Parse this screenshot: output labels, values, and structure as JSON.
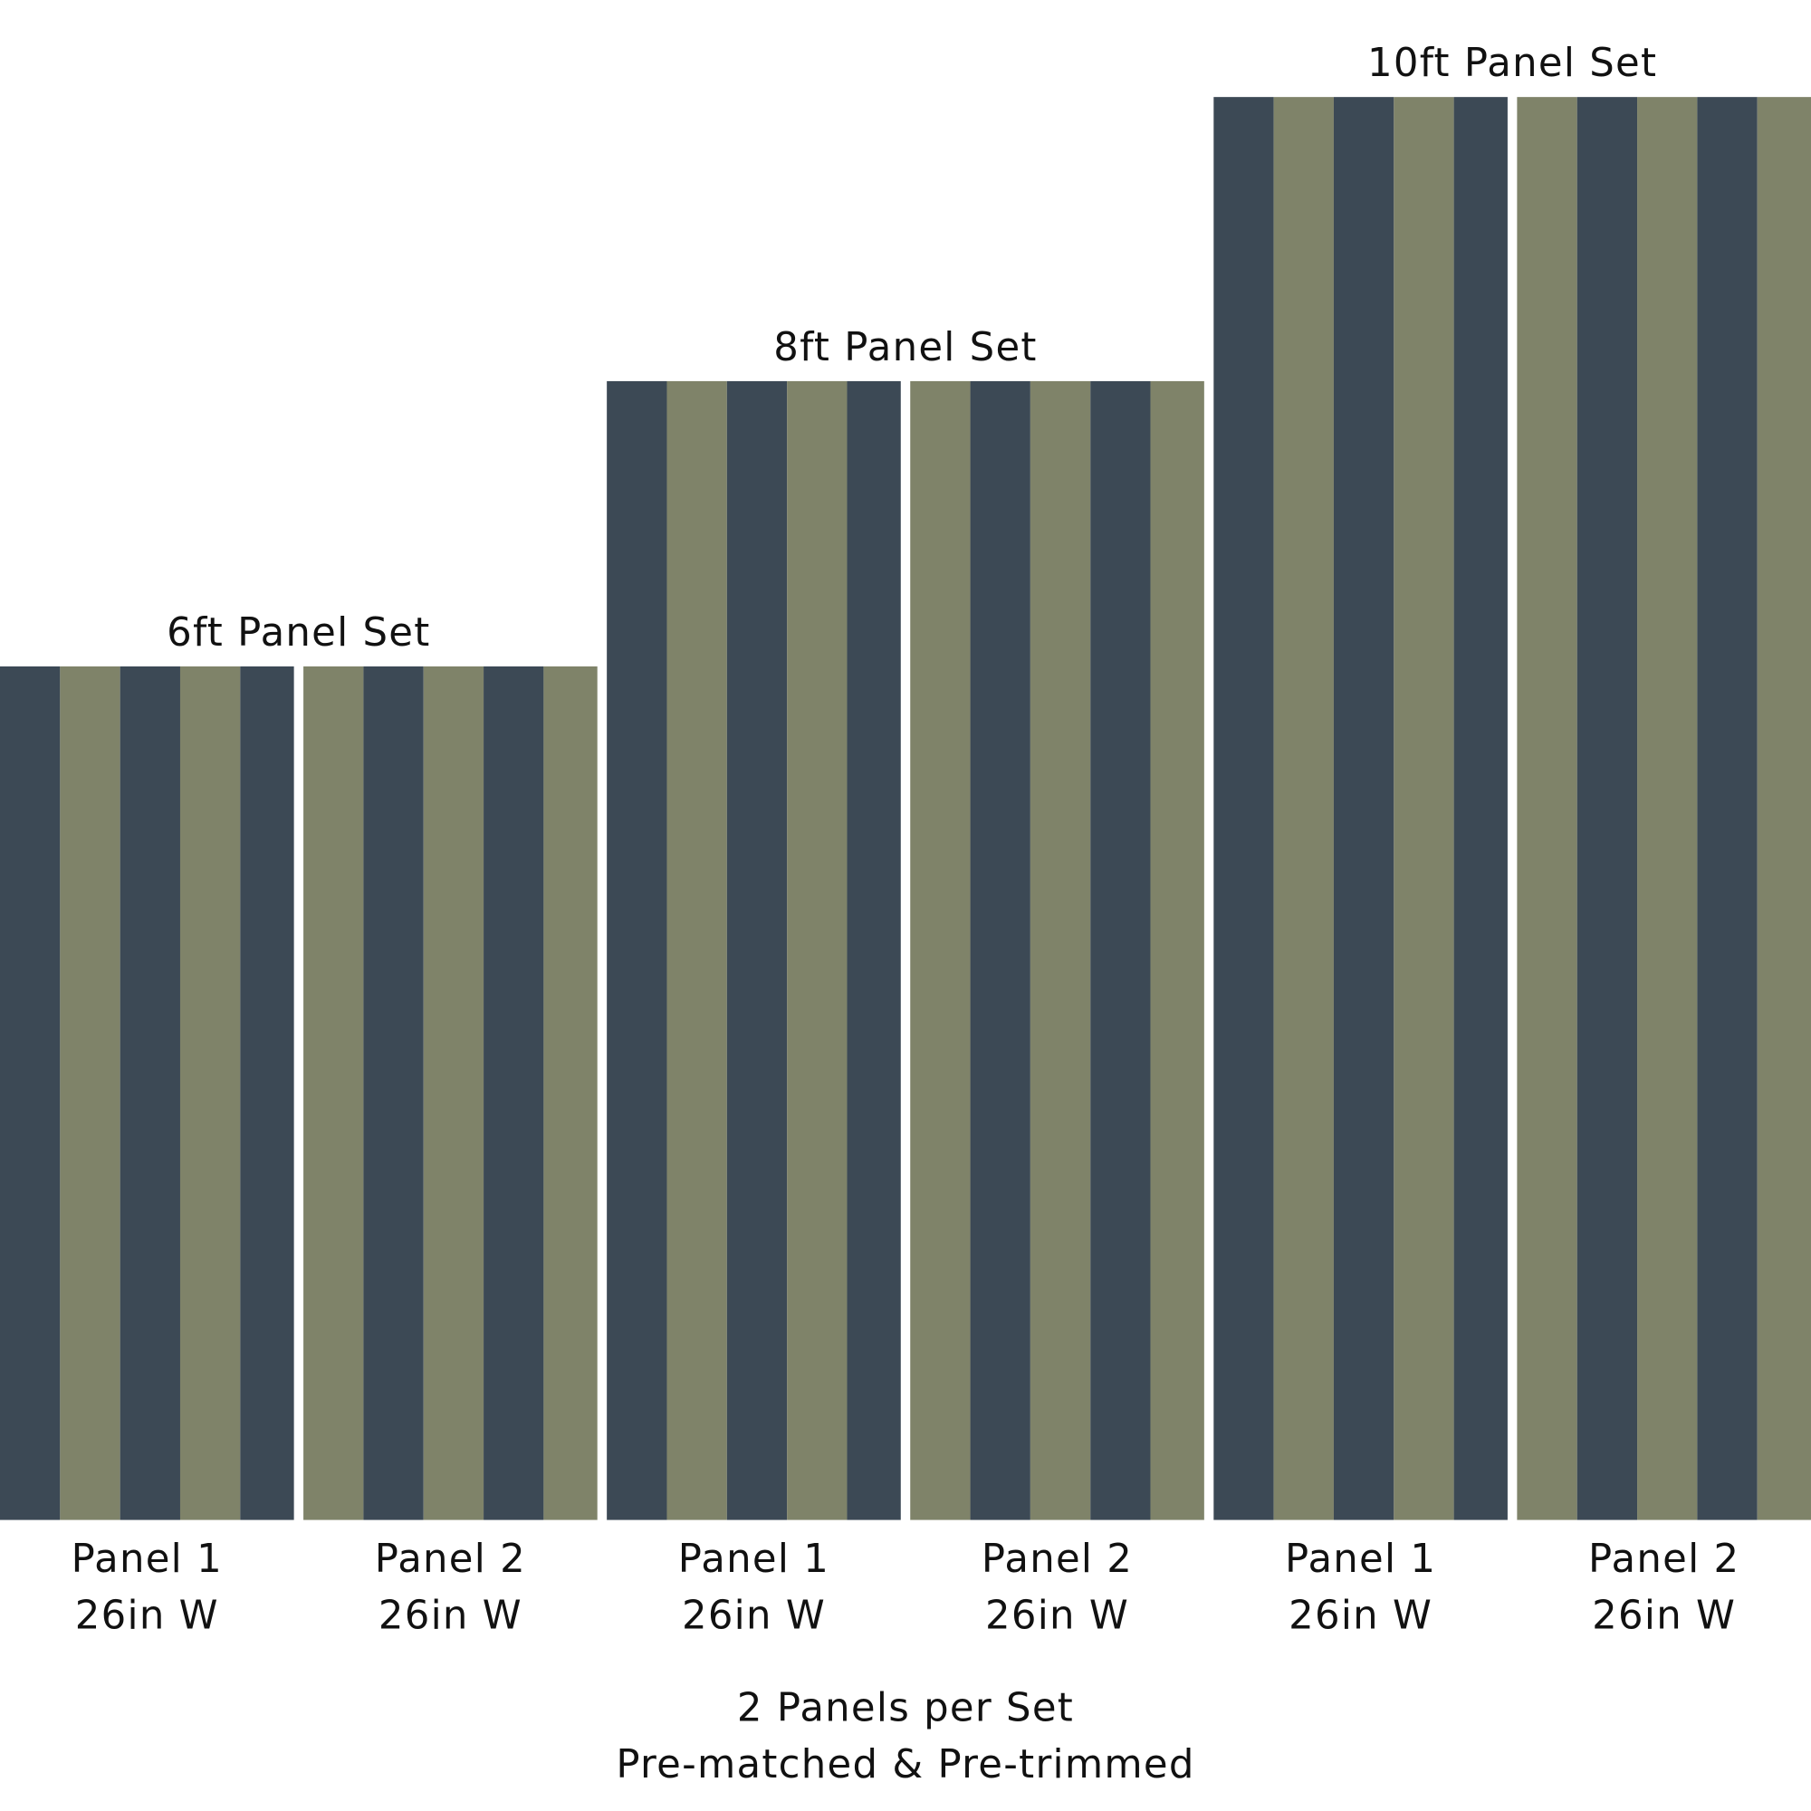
{
  "sets": [
    {
      "title": "6ft Panel Set",
      "panels": [
        {
          "name": "Panel 1",
          "width": "26in W"
        },
        {
          "name": "Panel 2",
          "width": "26in W"
        }
      ]
    },
    {
      "title": "8ft Panel Set",
      "panels": [
        {
          "name": "Panel 1",
          "width": "26in W"
        },
        {
          "name": "Panel 2",
          "width": "26in W"
        }
      ]
    },
    {
      "title": "10ft Panel Set",
      "panels": [
        {
          "name": "Panel 1",
          "width": "26in W"
        },
        {
          "name": "Panel 2",
          "width": "26in W"
        }
      ]
    }
  ],
  "footer": {
    "line1": "2 Panels per Set",
    "line2": "Pre-matched & Pre-trimmed"
  }
}
